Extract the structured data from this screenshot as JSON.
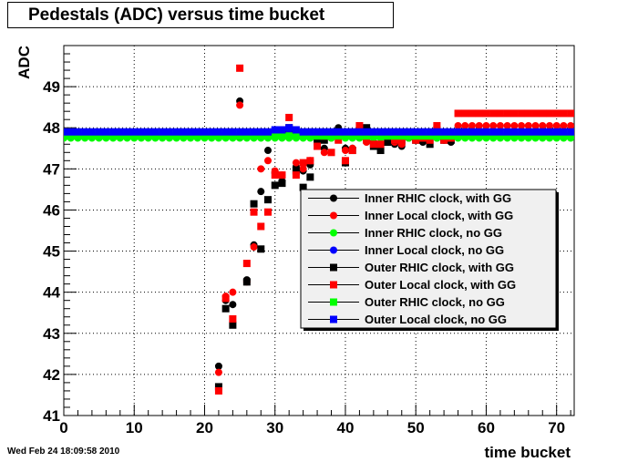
{
  "chart_data": {
    "type": "scatter",
    "title": "Pedestals (ADC) versus time bucket",
    "xlabel": "time bucket",
    "ylabel": "ADC",
    "xlim": [
      0,
      72.5
    ],
    "ylim": [
      41,
      50
    ],
    "xticks": [
      0,
      10,
      20,
      30,
      40,
      50,
      60,
      70
    ],
    "yticks": [
      41,
      42,
      43,
      44,
      45,
      46,
      47,
      48,
      49
    ],
    "grid": true,
    "legend_position": "right",
    "series": [
      {
        "name": "Inner RHIC  clock, with GG",
        "color": "#000000",
        "marker": "circle",
        "x": [
          22,
          23,
          24,
          25,
          26,
          27,
          28,
          29,
          30,
          31,
          32,
          33,
          34,
          35,
          36,
          37,
          38,
          39,
          40,
          41,
          42,
          43,
          44,
          45,
          46,
          47,
          48,
          49,
          50,
          51,
          52,
          53,
          54,
          55
        ],
        "y": [
          42.2,
          43.8,
          43.7,
          48.65,
          44.3,
          45.15,
          46.45,
          47.45,
          46.9,
          46.7,
          47.9,
          47.05,
          46.95,
          47.1,
          47.6,
          47.5,
          47.85,
          48.0,
          47.5,
          47.5,
          47.95,
          47.7,
          47.65,
          47.55,
          47.7,
          47.6,
          47.55,
          47.75,
          47.7,
          47.65,
          47.7,
          47.75,
          47.7,
          47.65
        ]
      },
      {
        "name": "Inner Local clock, with GG",
        "color": "#ff0000",
        "marker": "circle",
        "x": [
          22,
          23,
          24,
          25,
          26,
          27,
          28,
          29,
          30,
          31,
          32,
          33,
          34,
          35,
          36,
          37,
          38,
          39,
          40,
          41,
          42,
          43,
          44,
          45,
          46,
          47,
          48,
          49,
          50,
          51,
          52,
          53,
          54,
          55,
          56,
          57,
          58,
          59,
          60,
          61,
          62,
          63,
          64,
          65,
          66,
          67,
          68,
          69,
          70,
          71,
          72
        ],
        "y": [
          42.05,
          43.9,
          44.0,
          48.55,
          44.25,
          45.1,
          47.0,
          47.2,
          46.95,
          46.85,
          47.95,
          47.15,
          47.0,
          47.2,
          47.7,
          47.4,
          47.75,
          47.8,
          47.45,
          47.5,
          48.0,
          47.65,
          47.6,
          47.6,
          47.75,
          47.65,
          47.6,
          47.75,
          47.7,
          47.7,
          47.75,
          47.8,
          47.7,
          47.7,
          48.05,
          48.05,
          48.05,
          48.05,
          48.05,
          48.05,
          48.05,
          48.05,
          48.05,
          48.05,
          48.05,
          48.05,
          48.05,
          48.05,
          48.05,
          48.05,
          48.05
        ]
      },
      {
        "name": "Inner RHIC  clock, no GG",
        "color": "#00ff00",
        "marker": "circle",
        "x": [
          0,
          1,
          2,
          3,
          4,
          5,
          6,
          7,
          8,
          9,
          10,
          11,
          12,
          13,
          14,
          15,
          16,
          17,
          18,
          19,
          20,
          21,
          22,
          23,
          24,
          25,
          26,
          27,
          28,
          29,
          30,
          31,
          32,
          33,
          34,
          35,
          36,
          37,
          38,
          39,
          40,
          41,
          42,
          43,
          44,
          45,
          46,
          47,
          48,
          49,
          50,
          51,
          52,
          53,
          54,
          55,
          56,
          57,
          58,
          59,
          60,
          61,
          62,
          63,
          64,
          65,
          66,
          67,
          68,
          69,
          70,
          71,
          72
        ],
        "y": [
          47.75,
          47.75,
          47.75,
          47.75,
          47.75,
          47.75,
          47.75,
          47.75,
          47.75,
          47.75,
          47.75,
          47.75,
          47.75,
          47.75,
          47.75,
          47.75,
          47.75,
          47.75,
          47.75,
          47.75,
          47.75,
          47.75,
          47.75,
          47.75,
          47.75,
          47.75,
          47.75,
          47.75,
          47.75,
          47.75,
          47.75,
          47.75,
          47.75,
          47.75,
          47.75,
          47.75,
          47.75,
          47.75,
          47.75,
          47.75,
          47.75,
          47.75,
          47.75,
          47.75,
          47.75,
          47.75,
          47.75,
          47.75,
          47.75,
          47.75,
          47.75,
          47.75,
          47.75,
          47.75,
          47.75,
          47.75,
          47.75,
          47.75,
          47.75,
          47.75,
          47.75,
          47.75,
          47.75,
          47.75,
          47.75,
          47.75,
          47.75,
          47.75,
          47.75,
          47.75,
          47.75,
          47.75,
          47.75
        ]
      },
      {
        "name": "Inner Local clock, no GG",
        "color": "#0000ff",
        "marker": "circle",
        "x": [
          0,
          1,
          2,
          3,
          4,
          5,
          6,
          7,
          8,
          9,
          10,
          11,
          12,
          13,
          14,
          15,
          16,
          17,
          18,
          19,
          20,
          21,
          22,
          23,
          24,
          25,
          26,
          27,
          28,
          29,
          30,
          31,
          32,
          33,
          34,
          35,
          36,
          37,
          38,
          39,
          40,
          41,
          42,
          43,
          44,
          45,
          46,
          47,
          48,
          49,
          50,
          51,
          52,
          53,
          54,
          55,
          56,
          57,
          58,
          59,
          60,
          61,
          62,
          63,
          64,
          65,
          66,
          67,
          68,
          69,
          70,
          71,
          72
        ],
        "y": [
          47.8,
          47.8,
          47.8,
          47.8,
          47.8,
          47.8,
          47.8,
          47.8,
          47.8,
          47.8,
          47.8,
          47.8,
          47.8,
          47.8,
          47.8,
          47.8,
          47.8,
          47.8,
          47.8,
          47.8,
          47.8,
          47.8,
          47.8,
          47.8,
          47.8,
          47.8,
          47.8,
          47.8,
          47.8,
          47.8,
          47.85,
          47.9,
          47.95,
          47.9,
          47.85,
          47.85,
          47.85,
          47.85,
          47.85,
          47.85,
          47.85,
          47.85,
          47.85,
          47.85,
          47.85,
          47.85,
          47.85,
          47.85,
          47.8,
          47.8,
          47.8,
          47.8,
          47.8,
          47.8,
          47.8,
          47.8,
          47.8,
          47.8,
          47.8,
          47.8,
          47.8,
          47.8,
          47.8,
          47.8,
          47.8,
          47.8,
          47.8,
          47.8,
          47.8,
          47.8,
          47.8,
          47.8,
          47.8
        ]
      },
      {
        "name": "Outer RHIC  clock, with GG",
        "color": "#000000",
        "marker": "square",
        "x": [
          22,
          23,
          24,
          25,
          26,
          27,
          28,
          29,
          30,
          31,
          32,
          33,
          34,
          35,
          36,
          37,
          38,
          39,
          40,
          41,
          42,
          43,
          44,
          45,
          46,
          47,
          48,
          49,
          50,
          51,
          52,
          53,
          54,
          55
        ],
        "y": [
          41.7,
          43.6,
          43.2,
          47.8,
          44.25,
          46.15,
          45.05,
          46.25,
          46.6,
          46.65,
          48.0,
          46.95,
          46.55,
          46.8,
          47.7,
          47.7,
          47.85,
          47.9,
          47.15,
          47.45,
          47.8,
          48.0,
          47.55,
          47.45,
          47.65,
          47.7,
          47.7,
          47.8,
          47.7,
          47.7,
          47.6,
          47.95,
          47.7,
          47.7
        ]
      },
      {
        "name": "Outer Local clock, with GG",
        "color": "#ff0000",
        "marker": "square",
        "x": [
          22,
          23,
          24,
          25,
          26,
          27,
          28,
          29,
          30,
          31,
          32,
          33,
          34,
          35,
          36,
          37,
          38,
          39,
          40,
          41,
          42,
          43,
          44,
          45,
          46,
          47,
          48,
          49,
          50,
          51,
          52,
          53,
          54,
          55,
          56,
          57,
          58,
          59,
          60,
          61,
          62,
          63,
          64,
          65,
          66,
          67,
          68,
          69,
          70,
          71,
          72
        ],
        "y": [
          41.6,
          43.85,
          43.35,
          49.45,
          44.7,
          45.95,
          45.6,
          45.95,
          46.85,
          46.85,
          48.25,
          46.85,
          47.15,
          47.2,
          47.55,
          47.8,
          47.4,
          47.7,
          47.2,
          47.45,
          48.05,
          47.7,
          47.6,
          47.6,
          47.8,
          47.7,
          47.65,
          47.8,
          47.7,
          47.75,
          47.7,
          48.05,
          47.7,
          47.75,
          48.35,
          48.35,
          48.35,
          48.35,
          48.35,
          48.35,
          48.35,
          48.35,
          48.35,
          48.35,
          48.35,
          48.35,
          48.35,
          48.35,
          48.35,
          48.35,
          48.35
        ]
      },
      {
        "name": "Outer RHIC  clock, no GG",
        "color": "#00ff00",
        "marker": "square",
        "x": [
          0,
          1,
          2,
          3,
          4,
          5,
          6,
          7,
          8,
          9,
          10,
          11,
          12,
          13,
          14,
          15,
          16,
          17,
          18,
          19,
          20,
          21,
          22,
          23,
          24,
          25,
          26,
          27,
          28,
          29,
          30,
          31,
          32,
          33,
          34,
          35,
          36,
          37,
          38,
          39,
          40,
          41,
          42,
          43,
          44,
          45,
          46,
          47,
          48,
          49,
          50,
          51,
          52,
          53,
          54,
          55,
          56,
          57,
          58,
          59,
          60,
          61,
          62,
          63,
          64,
          65,
          66,
          67,
          68,
          69,
          70,
          71,
          72
        ],
        "y": [
          47.8,
          47.8,
          47.8,
          47.8,
          47.8,
          47.8,
          47.8,
          47.8,
          47.8,
          47.8,
          47.8,
          47.8,
          47.8,
          47.8,
          47.8,
          47.8,
          47.8,
          47.8,
          47.8,
          47.8,
          47.8,
          47.8,
          47.8,
          47.8,
          47.8,
          47.8,
          47.8,
          47.8,
          47.8,
          47.8,
          47.8,
          47.8,
          47.8,
          47.8,
          47.8,
          47.8,
          47.8,
          47.8,
          47.8,
          47.8,
          47.8,
          47.8,
          47.8,
          47.8,
          47.8,
          47.8,
          47.8,
          47.8,
          47.8,
          47.8,
          47.8,
          47.8,
          47.8,
          47.8,
          47.8,
          47.8,
          47.8,
          47.8,
          47.8,
          47.8,
          47.8,
          47.8,
          47.8,
          47.8,
          47.8,
          47.8,
          47.8,
          47.8,
          47.8,
          47.8,
          47.8,
          47.8,
          47.8
        ]
      },
      {
        "name": "Outer Local clock, no GG",
        "color": "#0000ff",
        "marker": "square",
        "x": [
          0,
          1,
          2,
          3,
          4,
          5,
          6,
          7,
          8,
          9,
          10,
          11,
          12,
          13,
          14,
          15,
          16,
          17,
          18,
          19,
          20,
          21,
          22,
          23,
          24,
          25,
          26,
          27,
          28,
          29,
          30,
          31,
          32,
          33,
          34,
          35,
          36,
          37,
          38,
          39,
          40,
          41,
          42,
          43,
          44,
          45,
          46,
          47,
          48,
          49,
          50,
          51,
          52,
          53,
          54,
          55,
          56,
          57,
          58,
          59,
          60,
          61,
          62,
          63,
          64,
          65,
          66,
          67,
          68,
          69,
          70,
          71,
          72
        ],
        "y": [
          47.9,
          47.9,
          47.9,
          47.9,
          47.9,
          47.9,
          47.9,
          47.9,
          47.9,
          47.9,
          47.9,
          47.9,
          47.9,
          47.9,
          47.9,
          47.9,
          47.9,
          47.9,
          47.9,
          47.9,
          47.9,
          47.9,
          47.9,
          47.9,
          47.9,
          47.9,
          47.9,
          47.9,
          47.9,
          47.9,
          47.95,
          47.95,
          48.0,
          47.95,
          47.9,
          47.9,
          47.9,
          47.9,
          47.9,
          47.9,
          47.9,
          47.9,
          47.9,
          47.9,
          47.9,
          47.9,
          47.9,
          47.9,
          47.9,
          47.9,
          47.9,
          47.9,
          47.9,
          47.9,
          47.9,
          47.9,
          47.9,
          47.9,
          47.9,
          47.9,
          47.9,
          47.9,
          47.9,
          47.9,
          47.9,
          47.9,
          47.9,
          47.9,
          47.9,
          47.9,
          47.9,
          47.9,
          47.9
        ]
      }
    ]
  },
  "footer": {
    "timestamp": "Wed Feb 24 18:09:58 2010"
  }
}
